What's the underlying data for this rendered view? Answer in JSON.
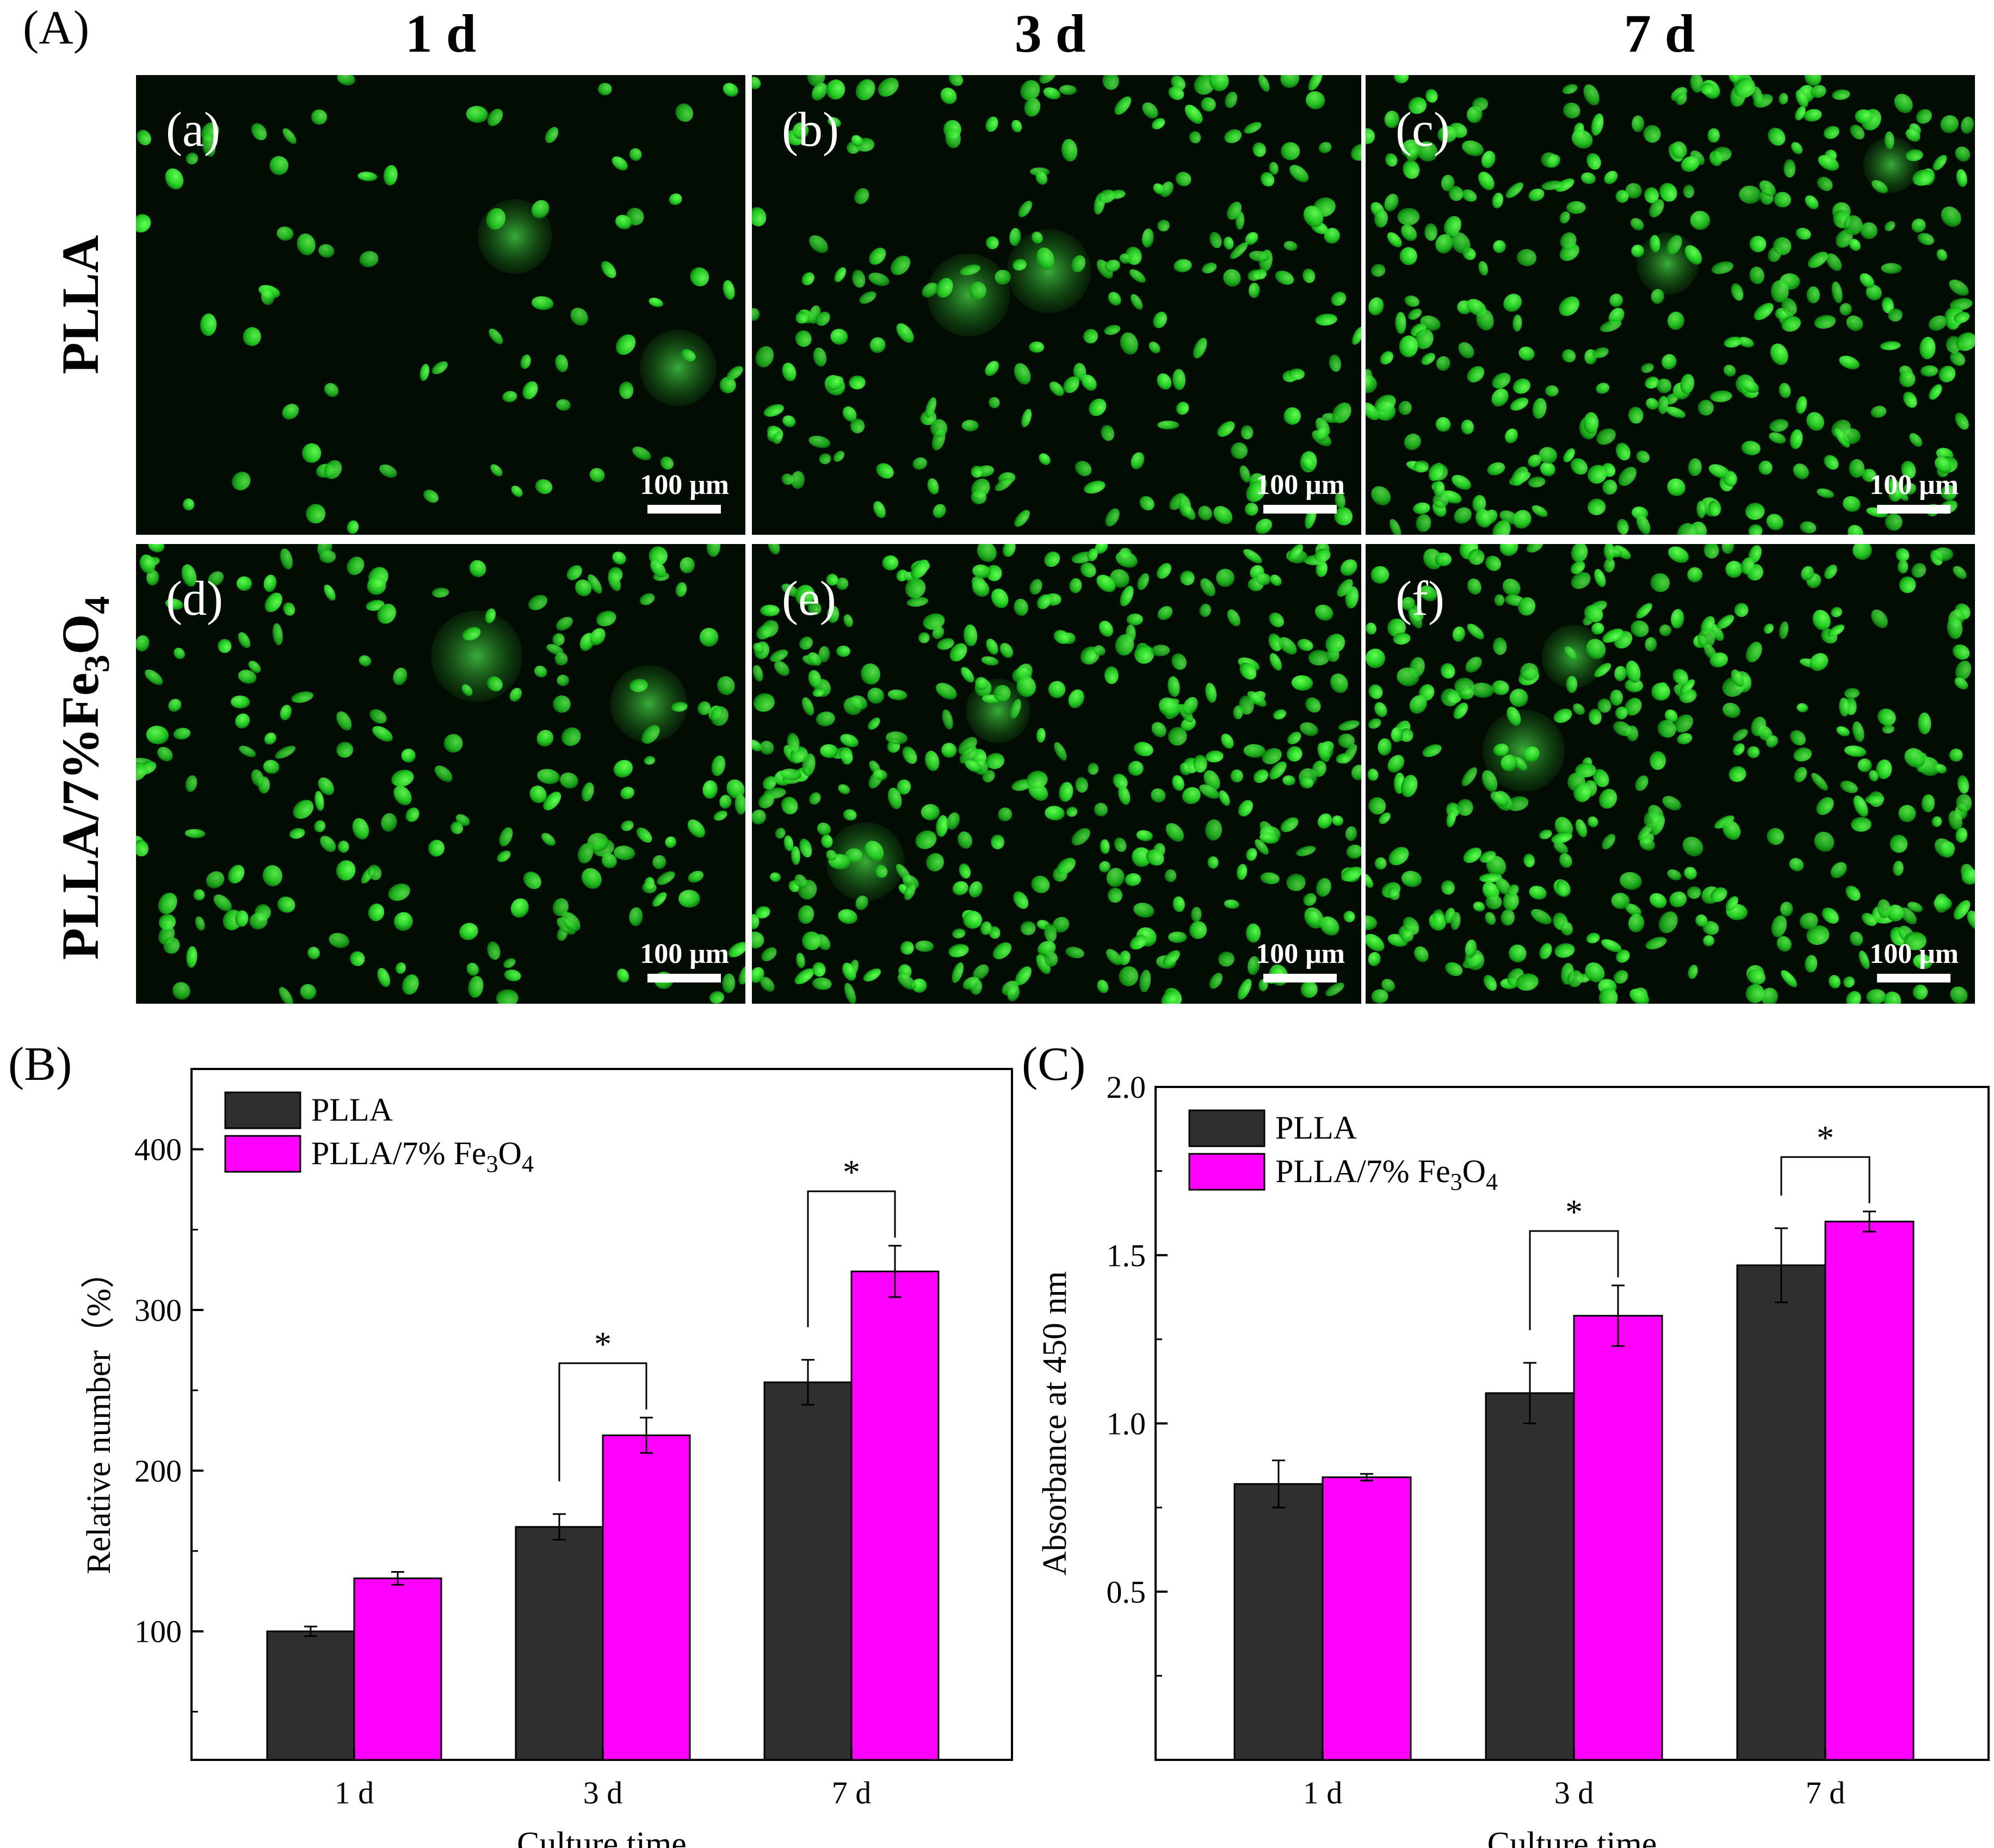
{
  "figure": {
    "panel_letters": [
      "(A)",
      "(B)",
      "(C)"
    ],
    "column_headers": [
      "1 d",
      "3 d",
      "7 d"
    ],
    "row_headers": [
      "PLLA",
      "PLLA/7%Fe3O4"
    ],
    "images": [
      {
        "label": "(a)",
        "scale": "100 μm"
      },
      {
        "label": "(b)",
        "scale": "100 μm"
      },
      {
        "label": "(c)",
        "scale": "100 μm"
      },
      {
        "label": "(d)",
        "scale": "100 μm"
      },
      {
        "label": "(e)",
        "scale": "100 μm"
      },
      {
        "label": "(f)",
        "scale": "100 μm"
      }
    ],
    "colors": {
      "plla": "#2f2f2f",
      "fe3o4": "#ff00ff",
      "cell": "#22dd22",
      "micro_bg": "#020c02"
    }
  },
  "chart_data": [
    {
      "type": "bar",
      "panel": "(B)",
      "categories": [
        "1 d",
        "3 d",
        "7 d"
      ],
      "series": [
        {
          "name": "PLLA",
          "values": [
            100,
            165,
            255
          ],
          "errors": [
            3,
            8,
            14
          ]
        },
        {
          "name": "PLLA/7% Fe3O4",
          "values": [
            133,
            222,
            324
          ],
          "errors": [
            4,
            11,
            16
          ]
        }
      ],
      "xlabel": "Culture time",
      "ylabel": "Relative number（%）",
      "ylim": [
        20,
        450
      ],
      "yticks": [
        100,
        200,
        300,
        400
      ],
      "significance": [
        "",
        "*",
        "*"
      ],
      "legend": "top-left"
    },
    {
      "type": "bar",
      "panel": "(C)",
      "categories": [
        "1 d",
        "3 d",
        "7 d"
      ],
      "series": [
        {
          "name": "PLLA",
          "values": [
            0.82,
            1.09,
            1.47
          ],
          "errors": [
            0.07,
            0.09,
            0.11
          ]
        },
        {
          "name": "PLLA/7% Fe3O4",
          "values": [
            0.84,
            1.32,
            1.6
          ],
          "errors": [
            0.01,
            0.09,
            0.03
          ]
        }
      ],
      "xlabel": "Culture time",
      "ylabel": "Absorbance at 450 nm",
      "ylim": [
        0.0,
        2.0
      ],
      "yticks": [
        0.5,
        1.0,
        1.5,
        2.0
      ],
      "tick_labels": [
        "0.5",
        "1.0",
        "1.5",
        "2.0"
      ],
      "significance": [
        "",
        "*",
        "*"
      ],
      "legend": "top-left"
    }
  ]
}
